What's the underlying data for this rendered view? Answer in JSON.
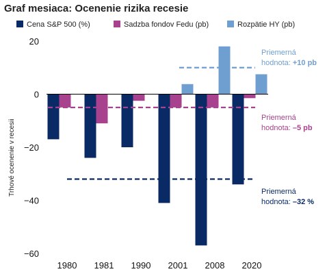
{
  "chart_data": {
    "type": "bar",
    "title": "Graf mesiaca: Ocenenie rizika recesie",
    "ylabel": "Trhové ocenenie v recesii",
    "ylim": [
      -60,
      20
    ],
    "yticks": [
      20,
      0,
      -20,
      -40,
      -60
    ],
    "categories": [
      "1980",
      "1981",
      "1990",
      "2001",
      "2008",
      "2020"
    ],
    "series": [
      {
        "name": "Cena S&P 500 (%)",
        "color": "#0a2a66",
        "values": [
          -17,
          -24,
          -20,
          -41,
          -57,
          -34
        ]
      },
      {
        "name": "Sadzba fondov Fedu (pb)",
        "color": "#a8428e",
        "values": [
          -5,
          -11,
          -2.5,
          -5,
          -5,
          -1.5
        ]
      },
      {
        "name": "Rozpätie HY (pb)",
        "color": "#6f9fd0",
        "values": [
          0,
          0,
          0,
          3.8,
          18,
          7.5
        ]
      }
    ],
    "averages": [
      {
        "label_line1": "Priemerná",
        "label_line2": "hodnota:",
        "label_value": "+10 pb",
        "value": 10,
        "color": "#6f9fd0",
        "from_category": "2001",
        "to_category": "2020"
      },
      {
        "label_line1": "Priemerná",
        "label_line2": "hodnota:",
        "label_value": "–5 pb",
        "value": -5,
        "color": "#a8428e",
        "from_category": "1980",
        "to_category": "2020"
      },
      {
        "label_line1": "Priemerná",
        "label_line2": "hodnota:",
        "label_value": "–32 %",
        "value": -32,
        "color": "#0a2a66",
        "from_category": "1981",
        "to_category": "2020"
      }
    ],
    "legend_position": "top",
    "grid": false
  }
}
